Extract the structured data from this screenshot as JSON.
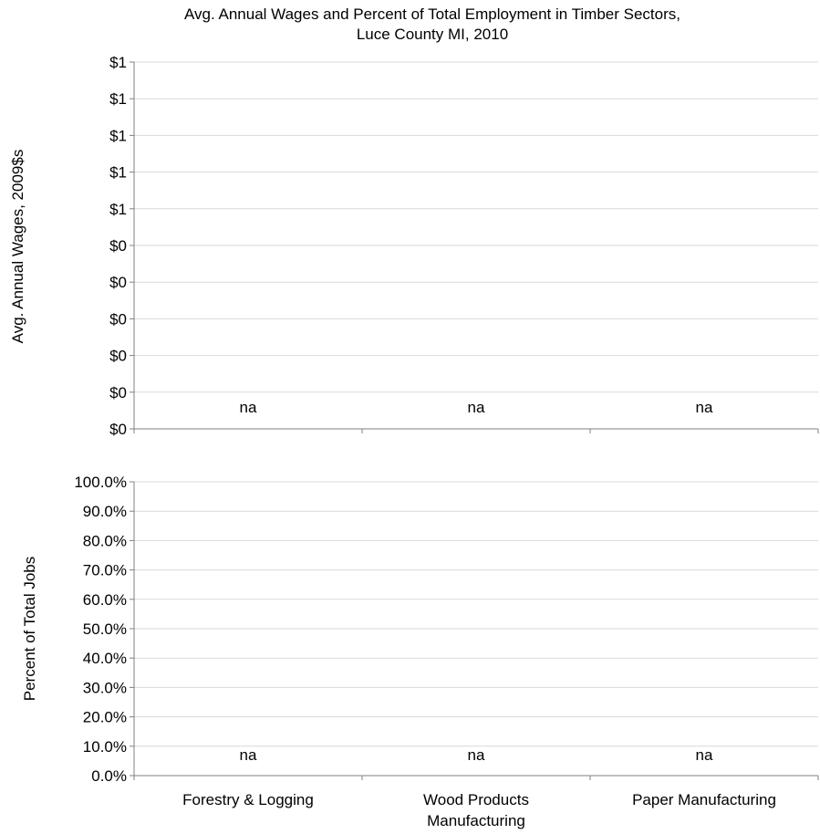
{
  "chart_data": [
    {
      "type": "bar",
      "title": "Avg. Annual Wages and Percent of Total Employment in Timber Sectors,",
      "subtitle": "Luce County MI, 2010",
      "categories": [
        "Forestry & Logging",
        "Wood Products Manufacturing",
        "Paper Manufacturing"
      ],
      "series": [
        {
          "values": [
            0,
            0,
            0
          ]
        }
      ],
      "data_labels": [
        "na",
        "na",
        "na"
      ],
      "ylabel": "Avg. Annual Wages, 2009$s",
      "ylim": [
        0,
        1
      ],
      "yticks": [
        "$0",
        "$0",
        "$0",
        "$0",
        "$0",
        "$0",
        "$1",
        "$1",
        "$1",
        "$1",
        "$1"
      ],
      "grid": true
    },
    {
      "type": "bar",
      "categories": [
        "Forestry & Logging",
        "Wood Products Manufacturing",
        "Paper Manufacturing"
      ],
      "category_labels": [
        [
          "Forestry & Logging"
        ],
        [
          "Wood Products",
          "Manufacturing"
        ],
        [
          "Paper Manufacturing"
        ]
      ],
      "series": [
        {
          "values": [
            0,
            0,
            0
          ]
        }
      ],
      "data_labels": [
        "na",
        "na",
        "na"
      ],
      "ylabel": "Percent of Total Jobs",
      "ylim": [
        0,
        100
      ],
      "yticks": [
        "0.0%",
        "10.0%",
        "20.0%",
        "30.0%",
        "40.0%",
        "50.0%",
        "60.0%",
        "70.0%",
        "80.0%",
        "90.0%",
        "100.0%"
      ],
      "grid": true
    }
  ]
}
